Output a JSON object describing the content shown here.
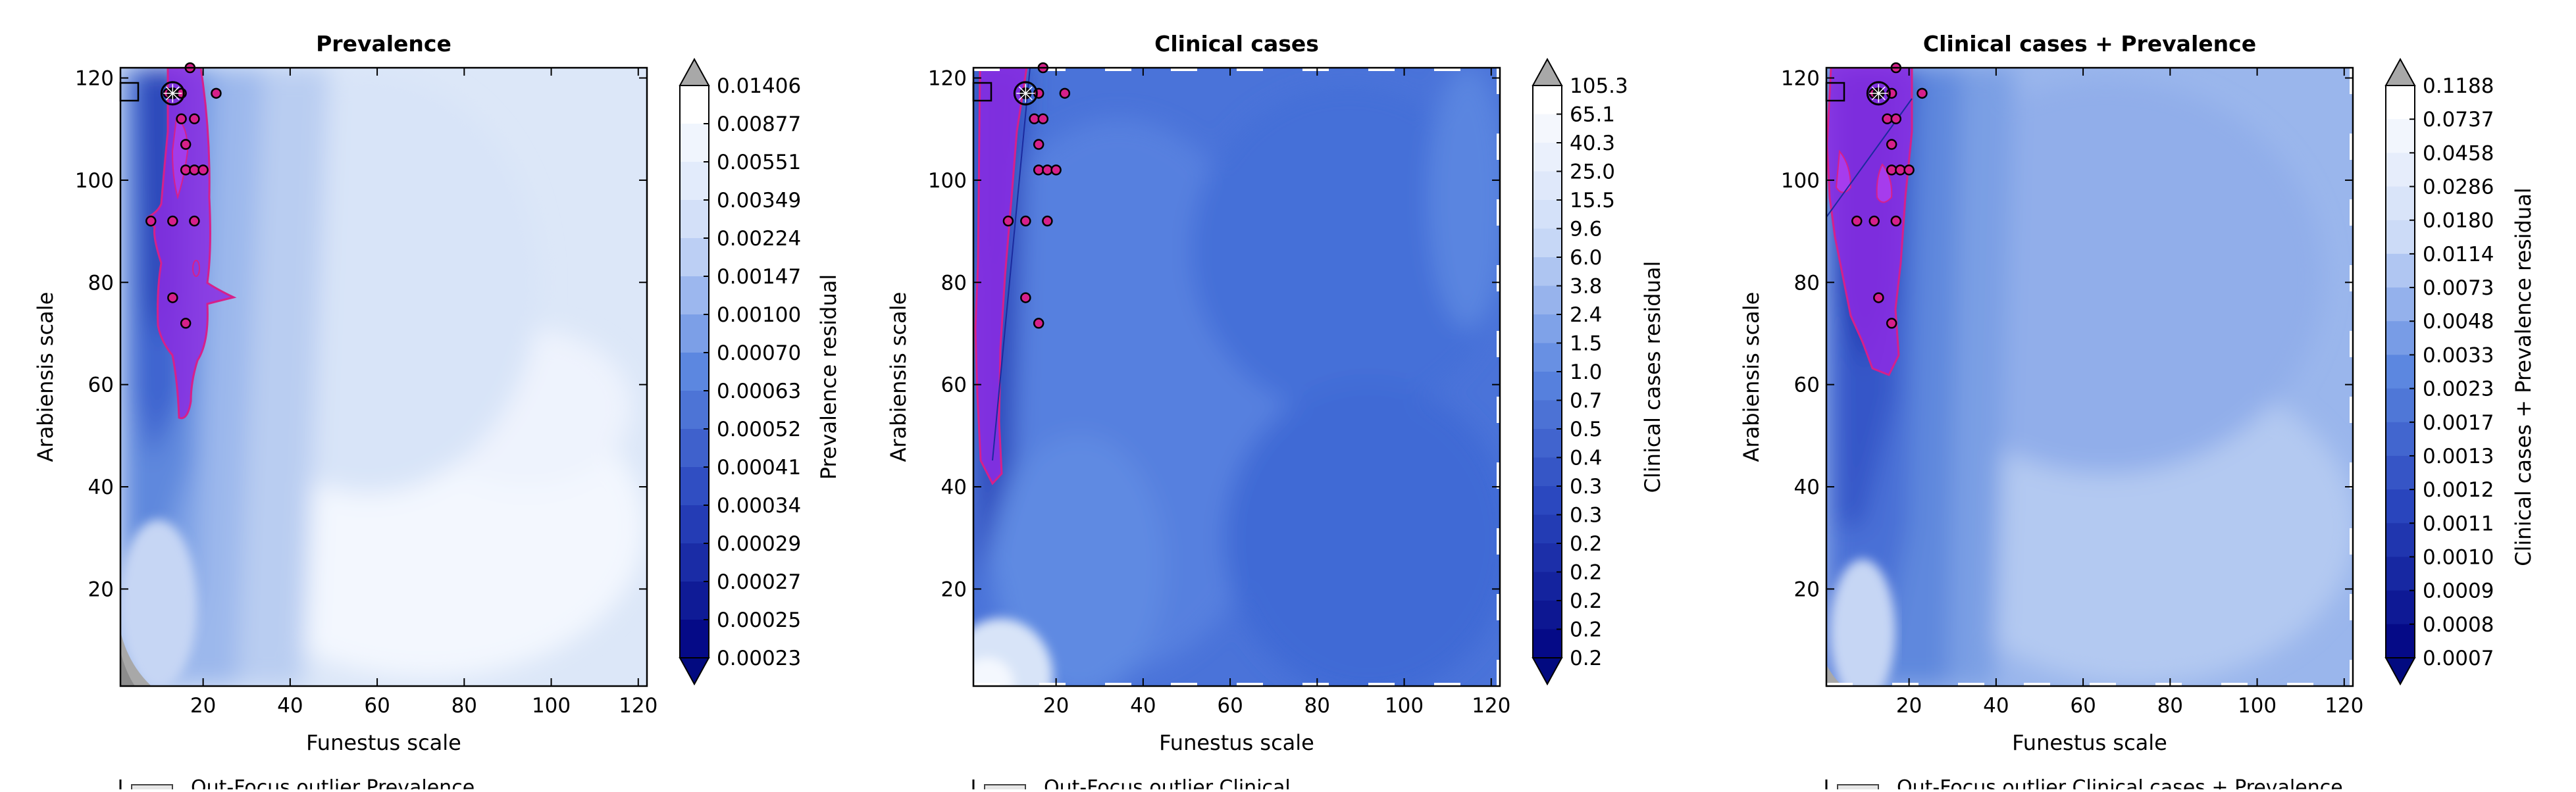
{
  "chart_data": [
    {
      "type": "contour",
      "title": "Prevalence",
      "xlabel": "Funestus scale",
      "ylabel": "Arabiensis scale",
      "xlim": [
        1,
        122
      ],
      "ylim": [
        1,
        122
      ],
      "xticks": [
        20,
        40,
        60,
        80,
        100,
        120
      ],
      "yticks": [
        20,
        40,
        60,
        80,
        100,
        120
      ],
      "colorbar_label": "Prevalence residual",
      "colorbar_levels": [
        "0.01406",
        "0.00877",
        "0.00551",
        "0.00349",
        "0.00224",
        "0.00147",
        "0.00100",
        "0.00070",
        "0.00063",
        "0.00052",
        "0.00041",
        "0.00034",
        "0.00029",
        "0.00027",
        "0.00025",
        "0.00023"
      ],
      "best_fit": [
        13,
        117
      ],
      "points": [
        [
          17,
          122
        ],
        [
          12,
          117
        ],
        [
          15,
          117
        ],
        [
          23,
          117
        ],
        [
          15,
          112
        ],
        [
          18,
          112
        ],
        [
          16,
          107
        ],
        [
          16,
          102
        ],
        [
          18,
          102
        ],
        [
          20,
          102
        ],
        [
          8,
          92
        ],
        [
          13,
          92
        ],
        [
          18,
          92
        ],
        [
          13,
          77
        ],
        [
          16,
          72
        ]
      ],
      "legend_text": "Out-Focus outlier Prevalence"
    },
    {
      "type": "contour",
      "title": "Clinical cases",
      "xlabel": "Funestus scale",
      "ylabel": "Arabiensis scale",
      "xlim": [
        1,
        122
      ],
      "ylim": [
        1,
        122
      ],
      "xticks": [
        20,
        40,
        60,
        80,
        100,
        120
      ],
      "yticks": [
        20,
        40,
        60,
        80,
        100,
        120
      ],
      "colorbar_label": "Clinical cases residual",
      "colorbar_levels": [
        "105.3",
        "65.1",
        "40.3",
        "25.0",
        "15.5",
        "9.6",
        "6.0",
        "3.8",
        "2.4",
        "1.5",
        "1.0",
        "0.7",
        "0.5",
        "0.4",
        "0.3",
        "0.3",
        "0.2",
        "0.2",
        "0.2",
        "0.2",
        "0.2"
      ],
      "best_fit": [
        13,
        117
      ],
      "points": [
        [
          17,
          122
        ],
        [
          16,
          117
        ],
        [
          22,
          117
        ],
        [
          15,
          112
        ],
        [
          17,
          112
        ],
        [
          16,
          107
        ],
        [
          16,
          102
        ],
        [
          18,
          102
        ],
        [
          20,
          102
        ],
        [
          9,
          92
        ],
        [
          13,
          92
        ],
        [
          18,
          92
        ],
        [
          13,
          77
        ],
        [
          16,
          72
        ]
      ],
      "legend_text": "Out-Focus outlier Clinical"
    },
    {
      "type": "contour",
      "title": "Clinical cases + Prevalence",
      "xlabel": "Funestus scale",
      "ylabel": "Arabiensis scale",
      "xlim": [
        1,
        122
      ],
      "ylim": [
        1,
        122
      ],
      "xticks": [
        20,
        40,
        60,
        80,
        100,
        120
      ],
      "yticks": [
        20,
        40,
        60,
        80,
        100,
        120
      ],
      "colorbar_label": "Clinical cases + Prevalence residual",
      "colorbar_levels": [
        "0.1188",
        "0.0737",
        "0.0458",
        "0.0286",
        "0.0180",
        "0.0114",
        "0.0073",
        "0.0048",
        "0.0033",
        "0.0023",
        "0.0017",
        "0.0013",
        "0.0012",
        "0.0011",
        "0.0010",
        "0.0009",
        "0.0008",
        "0.0007"
      ],
      "best_fit": [
        13,
        117
      ],
      "points": [
        [
          17,
          122
        ],
        [
          12,
          117
        ],
        [
          16,
          117
        ],
        [
          23,
          117
        ],
        [
          15,
          112
        ],
        [
          17,
          112
        ],
        [
          16,
          107
        ],
        [
          16,
          102
        ],
        [
          18,
          102
        ],
        [
          20,
          102
        ],
        [
          8,
          92
        ],
        [
          12,
          92
        ],
        [
          17,
          92
        ],
        [
          13,
          77
        ],
        [
          16,
          72
        ]
      ],
      "legend_text": "Out-Focus outlier Clinical cases + Prevalence"
    }
  ],
  "colors": {
    "deep": "#0a0f8c",
    "mid": "#3e6bd6",
    "base2": "#5b86e0",
    "light": "#c8d8f5",
    "purple": "#8a2be2",
    "purple_edge": "#d6208a",
    "point_fill": "#d6208a",
    "gray": "#a8a8a8"
  }
}
